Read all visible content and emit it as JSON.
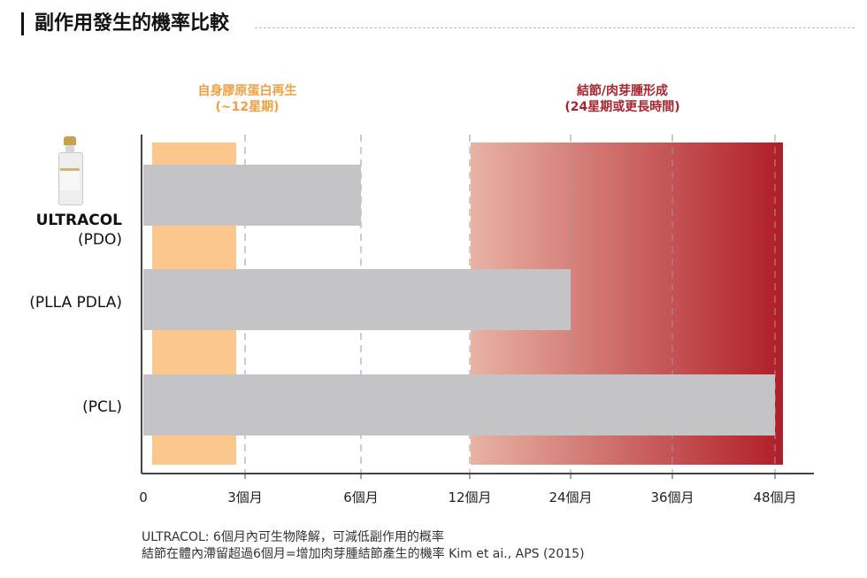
{
  "page": {
    "title": "副作用發生的機率比較"
  },
  "chart_data": {
    "type": "bar",
    "orientation": "horizontal",
    "title": "副作用發生的機率比較",
    "categories": [
      {
        "name": "ULTRACOL",
        "sub": "(PDO)",
        "duration_label": "6個月",
        "end_tick_index": 2
      },
      {
        "name": "",
        "sub": "(PLLA PDLA)",
        "duration_label": "24個月",
        "end_tick_index": 4
      },
      {
        "name": "",
        "sub": "(PCL)",
        "duration_label": "48個月",
        "end_tick_index": 6
      }
    ],
    "x_ticks": [
      "0",
      "3個月",
      "6個月",
      "12個月",
      "24個月",
      "36個月",
      "48個月"
    ],
    "x_tick_months": [
      0,
      3,
      6,
      12,
      24,
      36,
      48
    ],
    "zones": [
      {
        "line1": "自身膠原蛋白再生",
        "line2": "(~12星期)",
        "from_tick": 0,
        "to_tick": 1,
        "color": "#fbc78d",
        "text_color": "#f0a040"
      },
      {
        "line1": "結節/肉芽腫形成",
        "line2": "(24星期或更長時間)",
        "from_tick": 3,
        "to_tick": 6,
        "color_start": "#e8b2a4",
        "color_end": "#b01e28",
        "text_color": "#a8252e"
      }
    ],
    "bar_color": "#c4c4c6",
    "grid": "dashed-vertical",
    "legend": "none"
  },
  "footnote": {
    "line1": "ULTRACOL: 6個月內可生物降解，可減低副作用的概率",
    "line2": "結節在體內滯留超過6個月=增加肉芽腫結節產生的機率 Kim et ai., APS (2015)"
  }
}
